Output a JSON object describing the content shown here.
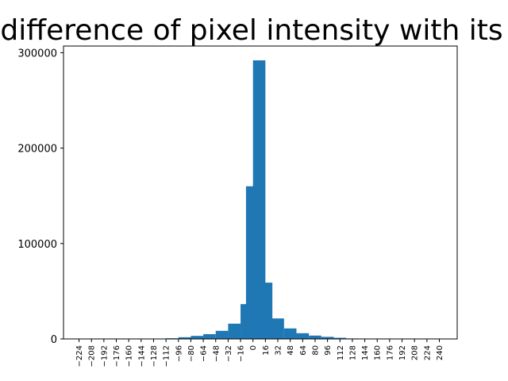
{
  "chart_data": {
    "type": "bar",
    "title": "difference of pixel intensity with its",
    "xlabel": "",
    "ylabel": "",
    "bar_color": "#1f77b4",
    "bin_width": 16,
    "xlim": [
      -244,
      263
    ],
    "ylim": [
      0,
      307000
    ],
    "grid": false,
    "legend": "none",
    "y_ticks": [
      0,
      100000,
      200000,
      300000
    ],
    "x_ticks": [
      -224,
      -208,
      -192,
      -176,
      -160,
      -144,
      -128,
      -112,
      -96,
      -80,
      -64,
      -48,
      -32,
      -16,
      0,
      16,
      32,
      48,
      64,
      80,
      96,
      112,
      128,
      144,
      160,
      176,
      192,
      208,
      224,
      240
    ],
    "bins": [
      {
        "start": -128,
        "value": 300
      },
      {
        "start": -112,
        "value": 700
      },
      {
        "start": -96,
        "value": 1800
      },
      {
        "start": -80,
        "value": 3200
      },
      {
        "start": -64,
        "value": 5000
      },
      {
        "start": -48,
        "value": 8500
      },
      {
        "start": -32,
        "value": 16000
      },
      {
        "start": -16,
        "value": 36500
      },
      {
        "start": -9,
        "value": 160000
      },
      {
        "start": 0,
        "value": 292000
      },
      {
        "start": 9,
        "value": 59000
      },
      {
        "start": 24,
        "value": 21500
      },
      {
        "start": 40,
        "value": 11000
      },
      {
        "start": 56,
        "value": 6000
      },
      {
        "start": 72,
        "value": 3500
      },
      {
        "start": 88,
        "value": 2200
      },
      {
        "start": 104,
        "value": 1200
      },
      {
        "start": 120,
        "value": 500
      },
      {
        "start": 136,
        "value": 200
      }
    ]
  }
}
